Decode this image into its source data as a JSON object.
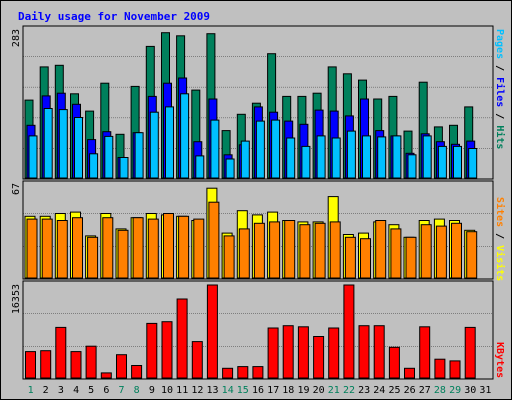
{
  "chart_title": "Daily usage for November 2009",
  "colors": {
    "background": "#c0c0c0",
    "title": "#0000ff",
    "hits": "#00805c",
    "files": "#0000ff",
    "pages": "#00c0ff",
    "visits": "#ffff00",
    "sites": "#ff8000",
    "kbytes": "#ff0000",
    "grid": "#000000",
    "day_weekday": "#000000",
    "day_weekend": "#00805c"
  },
  "chart_data": [
    {
      "type": "bar",
      "panel": "hits-files-pages",
      "ymax_label": "283",
      "ylim": [
        0,
        283
      ],
      "categories": [
        "1",
        "2",
        "3",
        "4",
        "5",
        "6",
        "7",
        "8",
        "9",
        "10",
        "11",
        "12",
        "13",
        "14",
        "15",
        "16",
        "17",
        "18",
        "19",
        "20",
        "21",
        "22",
        "23",
        "24",
        "25",
        "26",
        "27",
        "28",
        "29",
        "30",
        "31"
      ],
      "legend": [
        "Pages",
        "Files",
        "Hits"
      ],
      "series": [
        {
          "name": "Hits",
          "values": [
            148,
            211,
            214,
            160,
            127,
            180,
            83,
            174,
            250,
            276,
            270,
            167,
            274,
            90,
            121,
            142,
            236,
            155,
            155,
            161,
            211,
            198,
            186,
            150,
            155,
            89,
            182,
            97,
            100,
            135,
            0
          ]
        },
        {
          "name": "Files",
          "values": [
            100,
            156,
            161,
            140,
            73,
            88,
            39,
            86,
            155,
            180,
            190,
            69,
            150,
            44,
            63,
            135,
            125,
            108,
            102,
            129,
            127,
            118,
            150,
            90,
            80,
            47,
            84,
            69,
            64,
            70,
            0
          ]
        },
        {
          "name": "Pages",
          "values": [
            80,
            132,
            130,
            115,
            46,
            79,
            39,
            86,
            125,
            135,
            160,
            42,
            110,
            36,
            70,
            108,
            110,
            76,
            60,
            80,
            76,
            89,
            80,
            78,
            80,
            44,
            80,
            60,
            60,
            56,
            0
          ]
        }
      ]
    },
    {
      "type": "bar",
      "panel": "visits-sites",
      "ymax_label": "67",
      "ylim": [
        0,
        67
      ],
      "categories": [
        "1",
        "2",
        "3",
        "4",
        "5",
        "6",
        "7",
        "8",
        "9",
        "10",
        "11",
        "12",
        "13",
        "14",
        "15",
        "16",
        "17",
        "18",
        "19",
        "20",
        "21",
        "22",
        "23",
        "24",
        "25",
        "26",
        "27",
        "28",
        "29",
        "30",
        "31"
      ],
      "legend": [
        "Sites",
        "Visits"
      ],
      "series": [
        {
          "name": "Visits",
          "values": [
            44,
            44,
            46,
            47,
            30,
            46,
            35,
            43,
            46,
            45,
            44,
            41,
            64,
            32,
            48,
            45,
            47,
            41,
            40,
            40,
            58,
            31,
            32,
            40,
            38,
            29,
            41,
            42,
            41,
            34,
            0
          ]
        },
        {
          "name": "Sites",
          "values": [
            42,
            42,
            41,
            43,
            29,
            43,
            34,
            43,
            42,
            46,
            44,
            42,
            54,
            30,
            35,
            39,
            40,
            41,
            38,
            39,
            40,
            29,
            28,
            41,
            35,
            29,
            38,
            37,
            39,
            33,
            0
          ]
        }
      ]
    },
    {
      "type": "bar",
      "panel": "kbytes",
      "ymax_label": "16353",
      "ylim": [
        0,
        16353
      ],
      "categories": [
        "1",
        "2",
        "3",
        "4",
        "5",
        "6",
        "7",
        "8",
        "9",
        "10",
        "11",
        "12",
        "13",
        "14",
        "15",
        "16",
        "17",
        "18",
        "19",
        "20",
        "21",
        "22",
        "23",
        "24",
        "25",
        "26",
        "27",
        "28",
        "29",
        "30",
        "31"
      ],
      "legend": [
        "KBytes"
      ],
      "series": [
        {
          "name": "KBytes",
          "values": [
            4640,
            4800,
            8900,
            4640,
            5600,
            900,
            4100,
            2200,
            9600,
            9900,
            13900,
            6400,
            16353,
            1700,
            2000,
            2000,
            8800,
            9200,
            9000,
            7300,
            8800,
            16353,
            9200,
            9200,
            5400,
            1700,
            9000,
            3300,
            3000,
            8900,
            0
          ]
        }
      ]
    }
  ]
}
